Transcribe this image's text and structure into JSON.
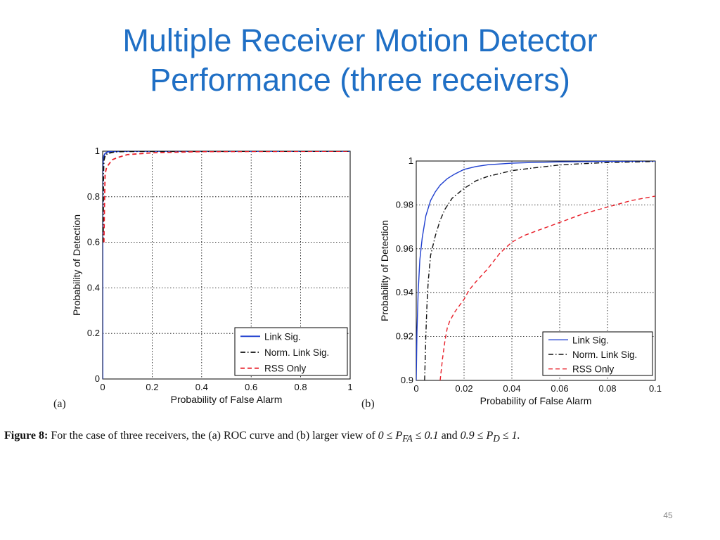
{
  "slide": {
    "title_line1": "Multiple Receiver Motion Detector",
    "title_line2": "Performance (three receivers)",
    "page_number": "45"
  },
  "caption": {
    "figure_label": "Figure 8:",
    "text": "For the case of three receivers, the (a) ROC curve and (b) larger view of",
    "math1": "0 ≤ P",
    "math1_sub": "FA",
    "math1_rest": " ≤ 0.1",
    "and": "and",
    "math2": "0.9 ≤ P",
    "math2_sub": "D",
    "math2_rest": " ≤ 1."
  },
  "colors": {
    "link_sig": "#1f3fcf",
    "norm_link_sig": "#111111",
    "rss_only": "#e8202a",
    "title": "#1f6fc5"
  },
  "chart_data": [
    {
      "panel_label": "(a)",
      "type": "line",
      "xlabel": "Probability of False Alarm",
      "ylabel": "Probability of Detection",
      "xlim": [
        0,
        1
      ],
      "ylim": [
        0,
        1
      ],
      "xticks": [
        "0",
        "0.2",
        "0.4",
        "0.6",
        "0.8",
        "1"
      ],
      "xtick_values": [
        0,
        0.2,
        0.4,
        0.6,
        0.8,
        1
      ],
      "yticks": [
        "0",
        "0.2",
        "0.4",
        "0.6",
        "0.8",
        "1"
      ],
      "ytick_values": [
        0,
        0.2,
        0.4,
        0.6,
        0.8,
        1
      ],
      "grid": true,
      "legend_position": "bottom-right",
      "series": [
        {
          "name": "Link Sig.",
          "style": "solid",
          "x": [
            0,
            0,
            0.002,
            0.005,
            0.01,
            0.02,
            0.05,
            0.1,
            1
          ],
          "y": [
            0,
            0.9,
            0.96,
            0.98,
            0.99,
            0.997,
            0.999,
            1,
            1
          ]
        },
        {
          "name": "Norm. Link Sig.",
          "style": "dashdot",
          "x": [
            0.002,
            0.003,
            0.005,
            0.01,
            0.02,
            0.05,
            0.1,
            1
          ],
          "y": [
            0.6,
            0.9,
            0.96,
            0.98,
            0.99,
            0.997,
            0.999,
            1
          ]
        },
        {
          "name": "RSS Only",
          "style": "dashed",
          "x": [
            0.005,
            0.008,
            0.01,
            0.015,
            0.02,
            0.03,
            0.04,
            0.06,
            0.1,
            0.2,
            0.4,
            0.7,
            1
          ],
          "y": [
            0.6,
            0.8,
            0.9,
            0.925,
            0.935,
            0.95,
            0.963,
            0.972,
            0.985,
            0.993,
            0.998,
            0.999,
            1
          ]
        }
      ]
    },
    {
      "panel_label": "(b)",
      "type": "line",
      "xlabel": "Probability of False Alarm",
      "ylabel": "Probability of Detection",
      "xlim": [
        0,
        0.1
      ],
      "ylim": [
        0.9,
        1
      ],
      "xticks": [
        "0",
        "0.02",
        "0.04",
        "0.06",
        "0.08",
        "0.1"
      ],
      "xtick_values": [
        0,
        0.02,
        0.04,
        0.06,
        0.08,
        0.1
      ],
      "yticks": [
        "0.9",
        "0.92",
        "0.94",
        "0.96",
        "0.98",
        "1"
      ],
      "ytick_values": [
        0.9,
        0.92,
        0.94,
        0.96,
        0.98,
        1
      ],
      "grid": true,
      "legend_position": "bottom-right",
      "series": [
        {
          "name": "Link Sig.",
          "style": "solid",
          "x": [
            0,
            0.0003,
            0.0008,
            0.0015,
            0.0025,
            0.004,
            0.006,
            0.008,
            0.01,
            0.013,
            0.016,
            0.02,
            0.025,
            0.03,
            0.04,
            0.05,
            0.06,
            0.08,
            0.1
          ],
          "y": [
            0.9,
            0.922,
            0.94,
            0.955,
            0.965,
            0.975,
            0.982,
            0.986,
            0.989,
            0.992,
            0.994,
            0.9962,
            0.9975,
            0.9983,
            0.999,
            0.9994,
            0.9996,
            0.9998,
            1
          ]
        },
        {
          "name": "Norm. Link Sig.",
          "style": "dashdot",
          "x": [
            0.0035,
            0.004,
            0.0045,
            0.005,
            0.006,
            0.008,
            0.01,
            0.012,
            0.015,
            0.02,
            0.025,
            0.03,
            0.04,
            0.05,
            0.06,
            0.07,
            0.08,
            0.1
          ],
          "y": [
            0.9,
            0.92,
            0.935,
            0.945,
            0.957,
            0.966,
            0.973,
            0.978,
            0.983,
            0.9875,
            0.991,
            0.993,
            0.9956,
            0.997,
            0.9982,
            0.9988,
            0.9993,
            0.9998
          ]
        },
        {
          "name": "RSS Only",
          "style": "dashed",
          "x": [
            0.01,
            0.011,
            0.012,
            0.013,
            0.014,
            0.016,
            0.018,
            0.02,
            0.022,
            0.025,
            0.03,
            0.035,
            0.04,
            0.045,
            0.05,
            0.06,
            0.07,
            0.08,
            0.09,
            0.1
          ],
          "y": [
            0.9,
            0.91,
            0.918,
            0.924,
            0.927,
            0.931,
            0.934,
            0.937,
            0.941,
            0.945,
            0.951,
            0.958,
            0.963,
            0.966,
            0.968,
            0.972,
            0.976,
            0.979,
            0.982,
            0.984
          ]
        }
      ]
    }
  ]
}
